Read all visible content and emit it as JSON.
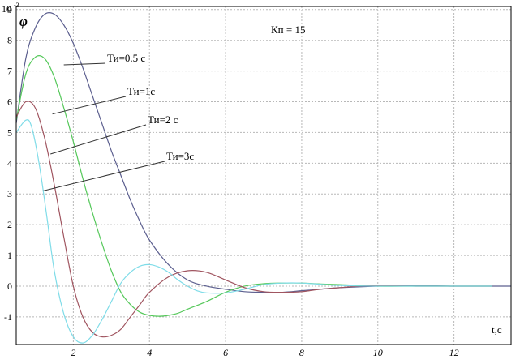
{
  "chart_data": {
    "type": "line",
    "title": "",
    "xlabel": "t,c",
    "ylabel": "φ",
    "y_scale_label": "10",
    "y_scale_exponent": "-3",
    "xlim": [
      0.5,
      13.5
    ],
    "ylim": [
      -1.9,
      9.1
    ],
    "x_ticks": [
      2,
      4,
      6,
      8,
      10,
      12
    ],
    "y_ticks": [
      -1,
      0,
      1,
      2,
      3,
      4,
      5,
      6,
      7,
      8,
      9
    ],
    "grid": true,
    "annotation": "Кп = 15",
    "series": [
      {
        "name": "Ти=0.5 с",
        "color": "#5c5f8f",
        "x": [
          0.5,
          0.75,
          1.0,
          1.25,
          1.5,
          1.75,
          2.0,
          2.25,
          2.5,
          2.75,
          3.0,
          3.25,
          3.5,
          3.75,
          4.0,
          4.5,
          5.0,
          5.5,
          6.0,
          6.5,
          7.0,
          7.5,
          8.0,
          8.5,
          9.0,
          10.0,
          11.0,
          12.0,
          13.0,
          13.5
        ],
        "y": [
          5.3,
          7.4,
          8.4,
          8.85,
          8.85,
          8.5,
          7.9,
          7.1,
          6.2,
          5.3,
          4.4,
          3.6,
          2.8,
          2.1,
          1.5,
          0.7,
          0.2,
          0.0,
          -0.1,
          -0.18,
          -0.2,
          -0.2,
          -0.15,
          -0.1,
          -0.05,
          0.0,
          0.02,
          0.0,
          0.0,
          0.0
        ]
      },
      {
        "name": "Ти=1с",
        "color": "#55c85a",
        "x": [
          0.5,
          0.75,
          1.0,
          1.25,
          1.5,
          1.75,
          2.0,
          2.25,
          2.5,
          2.75,
          3.0,
          3.25,
          3.5,
          3.75,
          4.0,
          4.25,
          4.5,
          4.75,
          5.0,
          5.5,
          6.0,
          6.5,
          7.0,
          7.5,
          8.0,
          8.5,
          9.0,
          10.0,
          11.0,
          12.0,
          13.0
        ],
        "y": [
          5.4,
          6.9,
          7.45,
          7.4,
          6.8,
          5.8,
          4.7,
          3.5,
          2.4,
          1.4,
          0.5,
          -0.2,
          -0.6,
          -0.85,
          -0.95,
          -0.98,
          -0.95,
          -0.88,
          -0.75,
          -0.5,
          -0.2,
          0.0,
          0.08,
          0.1,
          0.1,
          0.07,
          0.05,
          0.0,
          0.0,
          0.0,
          0.0
        ]
      },
      {
        "name": "Ти=2 с",
        "color": "#a05560",
        "x": [
          0.5,
          0.75,
          1.0,
          1.25,
          1.5,
          1.75,
          2.0,
          2.25,
          2.5,
          2.75,
          3.0,
          3.25,
          3.5,
          3.75,
          4.0,
          4.5,
          5.0,
          5.5,
          6.0,
          6.5,
          7.0,
          7.5,
          8.0,
          8.5,
          9.0,
          9.5,
          10.0,
          11.0,
          12.0,
          13.0
        ],
        "y": [
          5.5,
          6.0,
          5.8,
          4.8,
          3.3,
          1.6,
          0.0,
          -1.0,
          -1.5,
          -1.65,
          -1.6,
          -1.4,
          -1.0,
          -0.6,
          -0.2,
          0.3,
          0.5,
          0.45,
          0.2,
          -0.05,
          -0.18,
          -0.2,
          -0.18,
          -0.1,
          -0.05,
          0.0,
          0.02,
          0.0,
          0.0,
          0.0
        ]
      },
      {
        "name": "Ти=3с",
        "color": "#7fdce8",
        "x": [
          0.5,
          0.75,
          0.9,
          1.1,
          1.3,
          1.5,
          1.75,
          2.0,
          2.25,
          2.5,
          2.75,
          3.0,
          3.25,
          3.5,
          3.75,
          4.0,
          4.25,
          4.5,
          4.75,
          5.0,
          5.25,
          5.5,
          6.0,
          6.5,
          7.0,
          7.5,
          8.0,
          8.5,
          9.0,
          10.0,
          11.0,
          12.0,
          13.0
        ],
        "y": [
          5.0,
          5.4,
          5.2,
          4.0,
          2.3,
          0.5,
          -0.9,
          -1.65,
          -1.85,
          -1.6,
          -1.1,
          -0.5,
          0.1,
          0.45,
          0.65,
          0.7,
          0.62,
          0.45,
          0.2,
          0.0,
          -0.15,
          -0.22,
          -0.22,
          -0.1,
          0.05,
          0.1,
          0.1,
          0.06,
          0.02,
          0.0,
          0.0,
          0.0,
          0.0
        ]
      }
    ],
    "labels": [
      {
        "text": "Ти=0.5 с",
        "series": 0,
        "pointer_x": 1.75,
        "pointer_y": 7.2
      },
      {
        "text": "Ти=1с",
        "series": 1,
        "pointer_x": 1.45,
        "pointer_y": 5.6
      },
      {
        "text": "Ти=2 с",
        "series": 2,
        "pointer_x": 1.4,
        "pointer_y": 4.3
      },
      {
        "text": "Ти=3с",
        "series": 3,
        "pointer_x": 1.2,
        "pointer_y": 3.1
      }
    ]
  }
}
